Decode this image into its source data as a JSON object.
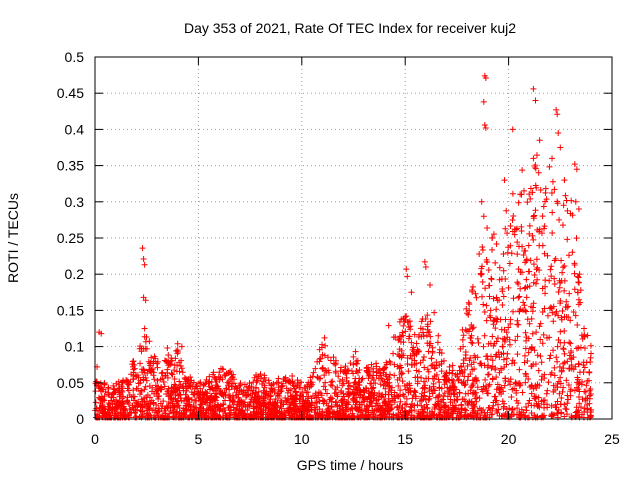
{
  "chart_data": {
    "type": "scatter",
    "title": "Day 353 of 2021, Rate Of TEC Index for receiver kuj2",
    "xlabel": "GPS time / hours",
    "ylabel": "ROTI / TECUs",
    "xlim": [
      0,
      25
    ],
    "ylim": [
      0,
      0.5
    ],
    "xticks": [
      "0",
      "5",
      "10",
      "15",
      "20",
      "25"
    ],
    "yticks": [
      "0",
      "0.05",
      "0.1",
      "0.15",
      "0.2",
      "0.25",
      "0.3",
      "0.35",
      "0.4",
      "0.45",
      "0.5"
    ],
    "grid": true,
    "marker": "plus",
    "color": "#ff0000",
    "series": [
      {
        "name": "ROTI",
        "envelope_hours": [
          0,
          0.5,
          1,
          1.5,
          2,
          2.5,
          3,
          3.5,
          4,
          4.5,
          5,
          5.5,
          6,
          6.5,
          7,
          7.5,
          8,
          8.5,
          9,
          9.5,
          10,
          10.5,
          11,
          11.5,
          12,
          12.5,
          13,
          13.5,
          14,
          14.5,
          15,
          15.5,
          16,
          16.5,
          17,
          17.5,
          18,
          18.5,
          19,
          19.5,
          20,
          20.5,
          21,
          21.5,
          22,
          22.5,
          23,
          23.5,
          24
        ],
        "envelope_roti": [
          0.06,
          0.05,
          0.05,
          0.06,
          0.09,
          0.12,
          0.08,
          0.09,
          0.1,
          0.06,
          0.05,
          0.06,
          0.07,
          0.07,
          0.05,
          0.05,
          0.07,
          0.05,
          0.06,
          0.06,
          0.05,
          0.06,
          0.11,
          0.09,
          0.07,
          0.09,
          0.07,
          0.08,
          0.07,
          0.12,
          0.15,
          0.12,
          0.15,
          0.12,
          0.07,
          0.08,
          0.16,
          0.22,
          0.28,
          0.25,
          0.3,
          0.35,
          0.33,
          0.38,
          0.35,
          0.3,
          0.32,
          0.2,
          0.1
        ],
        "outliers": [
          [
            0.1,
            0.072
          ],
          [
            0.2,
            0.12
          ],
          [
            0.3,
            0.118
          ],
          [
            2.3,
            0.236
          ],
          [
            2.35,
            0.221
          ],
          [
            2.4,
            0.213
          ],
          [
            2.35,
            0.168
          ],
          [
            2.45,
            0.164
          ],
          [
            2.4,
            0.125
          ],
          [
            3.5,
            0.098
          ],
          [
            4.0,
            0.104
          ],
          [
            4.2,
            0.1
          ],
          [
            11.1,
            0.112
          ],
          [
            12.6,
            0.093
          ],
          [
            14.2,
            0.129
          ],
          [
            15.05,
            0.207
          ],
          [
            15.1,
            0.197
          ],
          [
            15.3,
            0.175
          ],
          [
            15.95,
            0.217
          ],
          [
            16.0,
            0.21
          ],
          [
            16.2,
            0.185
          ],
          [
            16.4,
            0.147
          ],
          [
            16.6,
            0.115
          ],
          [
            18.85,
            0.474
          ],
          [
            18.9,
            0.471
          ],
          [
            18.8,
            0.438
          ],
          [
            18.85,
            0.406
          ],
          [
            18.9,
            0.402
          ],
          [
            18.7,
            0.3
          ],
          [
            18.8,
            0.28
          ],
          [
            19.8,
            0.33
          ],
          [
            20.2,
            0.4
          ],
          [
            21.2,
            0.456
          ],
          [
            21.3,
            0.44
          ],
          [
            21.5,
            0.385
          ],
          [
            21.2,
            0.36
          ],
          [
            22.3,
            0.427
          ],
          [
            22.35,
            0.421
          ],
          [
            22.4,
            0.395
          ],
          [
            22.1,
            0.36
          ],
          [
            22.5,
            0.375
          ],
          [
            22.7,
            0.33
          ],
          [
            23.2,
            0.352
          ],
          [
            23.3,
            0.345
          ],
          [
            23.25,
            0.3
          ],
          [
            23.4,
            0.29
          ]
        ]
      }
    ]
  }
}
